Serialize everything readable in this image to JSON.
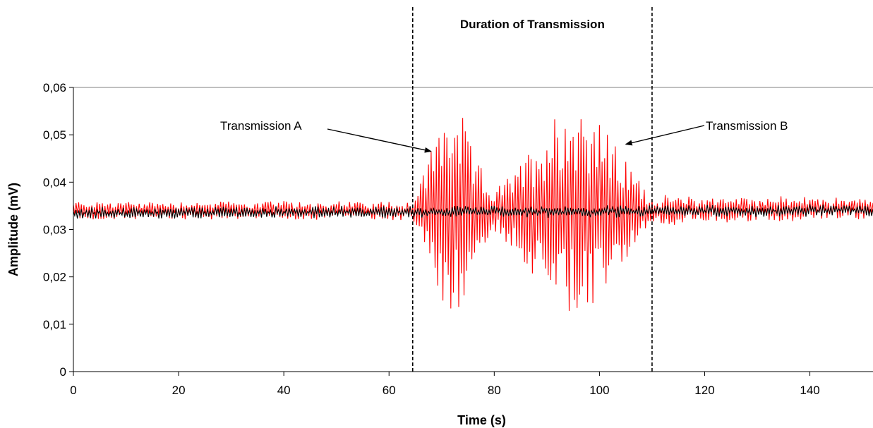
{
  "chart_data": {
    "type": "line",
    "title": "",
    "xlabel": "Time (s)",
    "ylabel": "Amplitude (mV)",
    "xlim": [
      0,
      152
    ],
    "ylim": [
      0,
      0.06
    ],
    "x_ticks": [
      0,
      20,
      40,
      60,
      80,
      100,
      120,
      140
    ],
    "x_tick_labels": [
      "0",
      "20",
      "40",
      "60",
      "80",
      "100",
      "120",
      "140"
    ],
    "y_ticks": [
      0,
      0.01,
      0.02,
      0.03,
      0.04,
      0.05,
      0.06
    ],
    "y_tick_labels": [
      "0",
      "0,01",
      "0,02",
      "0,03",
      "0,04",
      "0,05",
      "0,06"
    ],
    "grid": "horizontal line at top only",
    "legend": "none",
    "series": [
      {
        "color": "#ff0000",
        "sample_interval_s": 0.25,
        "description_ref": "red trace",
        "envelope_points": [
          {
            "x": 0,
            "y": 0.034
          },
          {
            "x": 64.5,
            "y": 0.034
          },
          {
            "x": 70,
            "y": 0.034,
            "swing": 0.02
          },
          {
            "x": 73,
            "y": 0.034,
            "swing": 0.023
          },
          {
            "x": 76,
            "y": 0.034,
            "swing": 0.012
          },
          {
            "x": 80,
            "y": 0.034,
            "swing": 0.004
          },
          {
            "x": 85,
            "y": 0.034,
            "swing": 0.01
          },
          {
            "x": 92,
            "y": 0.034,
            "swing": 0.022
          },
          {
            "x": 98,
            "y": 0.034,
            "swing": 0.023
          },
          {
            "x": 104,
            "y": 0.034,
            "swing": 0.012
          },
          {
            "x": 110,
            "y": 0.034,
            "swing": 0.003
          },
          {
            "x": 152,
            "y": 0.0345,
            "swing": 0.002
          }
        ]
      },
      {
        "color": "#000000",
        "sample_interval_s": 0.25,
        "envelope_points": [
          {
            "x": 0,
            "y": 0.0335,
            "swing": 0.001
          },
          {
            "x": 152,
            "y": 0.034,
            "swing": 0.001
          }
        ]
      }
    ],
    "vlines": [
      {
        "x": 64.5,
        "style": "dashed",
        "color": "#000000"
      },
      {
        "x": 110,
        "style": "dashed",
        "color": "#000000"
      }
    ],
    "annotations": [
      {
        "text": "Duration of Transmission",
        "bold": true
      },
      {
        "text": "Transmission A",
        "arrow_to": {
          "x": 68,
          "y": 0.0465
        }
      },
      {
        "text": "Transmission B",
        "arrow_to": {
          "x": 105,
          "y": 0.048
        }
      }
    ]
  }
}
